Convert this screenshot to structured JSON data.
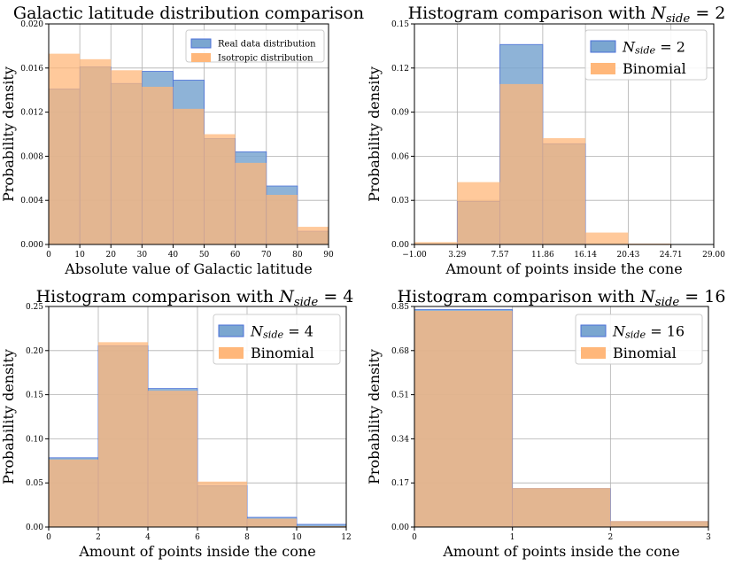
{
  "colors": {
    "real": "#7aa6d0",
    "real_edge": "#4a6fd8",
    "iso": "#ffb77a",
    "overlap": "#c6996d",
    "grid": "#b0b0b0"
  },
  "chart_data": [
    {
      "type": "bar",
      "title": "Galactic latitude distribution comparison",
      "xlabel": "Absolute value of Galactic latitude",
      "ylabel": "Probability density",
      "bin_edges": [
        0,
        10,
        20,
        30,
        40,
        50,
        60,
        70,
        80,
        90
      ],
      "xlim": [
        0,
        90
      ],
      "ylim": [
        0,
        0.02
      ],
      "x_ticks": [
        "0",
        "10",
        "20",
        "30",
        "40",
        "50",
        "60",
        "70",
        "80",
        "90"
      ],
      "y_ticks": [
        "0.000",
        "0.004",
        "0.008",
        "0.012",
        "0.016",
        "0.020"
      ],
      "legend_position": "top-right",
      "series": [
        {
          "name": "Real data distribution",
          "values": [
            0.0141,
            0.0161,
            0.0146,
            0.0157,
            0.0149,
            0.0096,
            0.0084,
            0.0053,
            0.0012
          ]
        },
        {
          "name": "Isotropic distribution",
          "values": [
            0.0173,
            0.0168,
            0.0158,
            0.0143,
            0.0123,
            0.01,
            0.0074,
            0.0045,
            0.0016
          ]
        }
      ]
    },
    {
      "type": "bar",
      "title_prefix": "Histogram comparison with ",
      "title_var": "N",
      "title_sub": "side",
      "title_suffix": " = 2",
      "xlabel": "Amount of points inside the cone",
      "ylabel": "Probability density",
      "bin_edges": [
        -1.0,
        3.29,
        7.57,
        11.86,
        16.14,
        20.43,
        24.71,
        29.0
      ],
      "xlim": [
        -1.0,
        29.0
      ],
      "ylim": [
        0,
        0.15
      ],
      "x_ticks": [
        "−1.00",
        "3.29",
        "7.57",
        "11.86",
        "16.14",
        "20.43",
        "24.71",
        "29.00"
      ],
      "y_ticks": [
        "0.00",
        "0.03",
        "0.06",
        "0.09",
        "0.12",
        "0.15"
      ],
      "legend_position": "top-right",
      "series": [
        {
          "name_var": "N",
          "name_sub": "side",
          "name_suffix": " = 2",
          "values": [
            0.0,
            0.0293,
            0.136,
            0.0685,
            0.0,
            0.0,
            0.0
          ]
        },
        {
          "name": "Binomial",
          "values": [
            0.0016,
            0.0424,
            0.1091,
            0.0723,
            0.0081,
            0.0006,
            0.0
          ]
        }
      ]
    },
    {
      "type": "bar",
      "title_prefix": "Histogram comparison with ",
      "title_var": "N",
      "title_sub": "side",
      "title_suffix": " = 4",
      "xlabel": "Amount of points inside the cone",
      "ylabel": "Probability density",
      "bin_edges": [
        0,
        2,
        4,
        6,
        8,
        10,
        12
      ],
      "xlim": [
        0,
        12
      ],
      "ylim": [
        0,
        0.25
      ],
      "x_ticks": [
        "0",
        "2",
        "4",
        "6",
        "8",
        "10",
        "12"
      ],
      "y_ticks": [
        "0.00",
        "0.05",
        "0.10",
        "0.15",
        "0.20",
        "0.25"
      ],
      "legend_position": "top-right",
      "series": [
        {
          "name_var": "N",
          "name_sub": "side",
          "name_suffix": " = 4",
          "values": [
            0.0785,
            0.2055,
            0.157,
            0.047,
            0.011,
            0.003
          ]
        },
        {
          "name": "Binomial",
          "values": [
            0.0765,
            0.2095,
            0.1545,
            0.0515,
            0.0095,
            0.001
          ]
        }
      ]
    },
    {
      "type": "bar",
      "title_prefix": "Histogram comparison with ",
      "title_var": "N",
      "title_sub": "side",
      "title_suffix": " = 16",
      "xlabel": "Amount of points inside the cone",
      "ylabel": "Probability density",
      "bin_edges": [
        0,
        1,
        2,
        3
      ],
      "xlim": [
        0,
        3
      ],
      "ylim": [
        0,
        0.85
      ],
      "x_ticks": [
        "0",
        "1",
        "2",
        "3"
      ],
      "y_ticks": [
        "0.00",
        "0.17",
        "0.34",
        "0.51",
        "0.68",
        "0.85"
      ],
      "legend_position": "top-right",
      "series": [
        {
          "name_var": "N",
          "name_sub": "side",
          "name_suffix": " = 16",
          "values": [
            0.838,
            0.148,
            0.021
          ]
        },
        {
          "name": "Binomial",
          "values": [
            0.833,
            0.15,
            0.023
          ]
        }
      ]
    }
  ]
}
